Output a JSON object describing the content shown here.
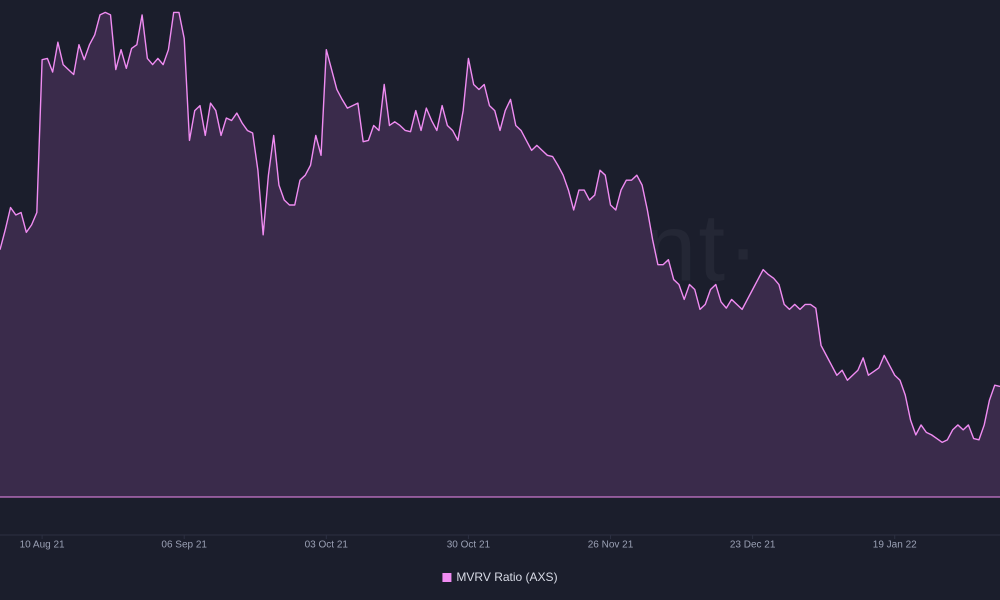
{
  "chart_data": {
    "type": "area",
    "watermark": "·santiment·",
    "x": [
      "2021-08-02",
      "2021-08-03",
      "2021-08-04",
      "2021-08-05",
      "2021-08-06",
      "2021-08-07",
      "2021-08-08",
      "2021-08-09",
      "2021-08-10",
      "2021-08-11",
      "2021-08-12",
      "2021-08-13",
      "2021-08-14",
      "2021-08-15",
      "2021-08-16",
      "2021-08-17",
      "2021-08-18",
      "2021-08-19",
      "2021-08-20",
      "2021-08-21",
      "2021-08-22",
      "2021-08-23",
      "2021-08-24",
      "2021-08-25",
      "2021-08-26",
      "2021-08-27",
      "2021-08-28",
      "2021-08-29",
      "2021-08-30",
      "2021-08-31",
      "2021-09-01",
      "2021-09-02",
      "2021-09-03",
      "2021-09-04",
      "2021-09-05",
      "2021-09-06",
      "2021-09-07",
      "2021-09-08",
      "2021-09-09",
      "2021-09-10",
      "2021-09-11",
      "2021-09-12",
      "2021-09-13",
      "2021-09-14",
      "2021-09-15",
      "2021-09-16",
      "2021-09-17",
      "2021-09-18",
      "2021-09-19",
      "2021-09-20",
      "2021-09-21",
      "2021-09-22",
      "2021-09-23",
      "2021-09-24",
      "2021-09-25",
      "2021-09-26",
      "2021-09-27",
      "2021-09-28",
      "2021-09-29",
      "2021-09-30",
      "2021-10-01",
      "2021-10-02",
      "2021-10-03",
      "2021-10-04",
      "2021-10-05",
      "2021-10-06",
      "2021-10-07",
      "2021-10-08",
      "2021-10-09",
      "2021-10-10",
      "2021-10-11",
      "2021-10-12",
      "2021-10-13",
      "2021-10-14",
      "2021-10-15",
      "2021-10-16",
      "2021-10-17",
      "2021-10-18",
      "2021-10-19",
      "2021-10-20",
      "2021-10-21",
      "2021-10-22",
      "2021-10-23",
      "2021-10-24",
      "2021-10-25",
      "2021-10-26",
      "2021-10-27",
      "2021-10-28",
      "2021-10-29",
      "2021-10-30",
      "2021-10-31",
      "2021-11-01",
      "2021-11-02",
      "2021-11-03",
      "2021-11-04",
      "2021-11-05",
      "2021-11-06",
      "2021-11-07",
      "2021-11-08",
      "2021-11-09",
      "2021-11-10",
      "2021-11-11",
      "2021-11-12",
      "2021-11-13",
      "2021-11-14",
      "2021-11-15",
      "2021-11-16",
      "2021-11-17",
      "2021-11-18",
      "2021-11-19",
      "2021-11-20",
      "2021-11-21",
      "2021-11-22",
      "2021-11-23",
      "2021-11-24",
      "2021-11-25",
      "2021-11-26",
      "2021-11-27",
      "2021-11-28",
      "2021-11-29",
      "2021-11-30",
      "2021-12-01",
      "2021-12-02",
      "2021-12-03",
      "2021-12-04",
      "2021-12-05",
      "2021-12-06",
      "2021-12-07",
      "2021-12-08",
      "2021-12-09",
      "2021-12-10",
      "2021-12-11",
      "2021-12-12",
      "2021-12-13",
      "2021-12-14",
      "2021-12-15",
      "2021-12-16",
      "2021-12-17",
      "2021-12-18",
      "2021-12-19",
      "2021-12-20",
      "2021-12-21",
      "2021-12-22",
      "2021-12-23",
      "2021-12-24",
      "2021-12-25",
      "2021-12-26",
      "2021-12-27",
      "2021-12-28",
      "2021-12-29",
      "2021-12-30",
      "2021-12-31",
      "2022-01-01",
      "2022-01-02",
      "2022-01-03",
      "2022-01-04",
      "2022-01-05",
      "2022-01-06",
      "2022-01-07",
      "2022-01-08",
      "2022-01-09",
      "2022-01-10",
      "2022-01-11",
      "2022-01-12",
      "2022-01-13",
      "2022-01-14",
      "2022-01-15",
      "2022-01-16",
      "2022-01-17",
      "2022-01-18",
      "2022-01-19",
      "2022-01-20",
      "2022-01-21",
      "2022-01-22",
      "2022-01-23",
      "2022-01-24",
      "2022-01-25",
      "2022-01-26",
      "2022-01-27",
      "2022-01-28",
      "2022-01-29",
      "2022-01-30",
      "2022-01-31",
      "2022-02-01",
      "2022-02-02",
      "2022-02-03",
      "2022-02-04",
      "2022-02-05",
      "2022-02-06",
      "2022-02-07",
      "2022-02-08"
    ],
    "series": [
      {
        "name": "MVRV Ratio (AXS)",
        "color": "#f08cf2",
        "fill": "#3a2b4b",
        "values": [
          2.99,
          3.15,
          3.33,
          3.27,
          3.29,
          3.13,
          3.19,
          3.29,
          4.52,
          4.53,
          4.42,
          4.66,
          4.48,
          4.44,
          4.4,
          4.64,
          4.52,
          4.64,
          4.72,
          4.88,
          4.9,
          4.88,
          4.44,
          4.6,
          4.45,
          4.61,
          4.64,
          4.88,
          4.53,
          4.48,
          4.53,
          4.48,
          4.6,
          4.9,
          4.9,
          4.69,
          3.87,
          4.11,
          4.15,
          3.91,
          4.17,
          4.11,
          3.91,
          4.05,
          4.03,
          4.09,
          4.01,
          3.95,
          3.93,
          3.63,
          3.11,
          3.59,
          3.91,
          3.51,
          3.39,
          3.35,
          3.35,
          3.55,
          3.59,
          3.67,
          3.91,
          3.75,
          4.6,
          4.44,
          4.28,
          4.2,
          4.13,
          4.15,
          4.17,
          3.86,
          3.87,
          3.99,
          3.95,
          4.32,
          3.99,
          4.02,
          3.99,
          3.95,
          3.94,
          4.11,
          3.95,
          4.13,
          4.03,
          3.95,
          4.15,
          3.99,
          3.95,
          3.87,
          4.11,
          4.53,
          4.32,
          4.28,
          4.32,
          4.15,
          4.11,
          3.95,
          4.11,
          4.2,
          3.99,
          3.95,
          3.87,
          3.79,
          3.83,
          3.79,
          3.75,
          3.74,
          3.67,
          3.59,
          3.47,
          3.31,
          3.47,
          3.47,
          3.39,
          3.43,
          3.63,
          3.59,
          3.35,
          3.31,
          3.47,
          3.55,
          3.55,
          3.59,
          3.51,
          3.31,
          3.07,
          2.87,
          2.87,
          2.91,
          2.75,
          2.71,
          2.59,
          2.71,
          2.67,
          2.51,
          2.55,
          2.67,
          2.71,
          2.57,
          2.52,
          2.59,
          2.55,
          2.51,
          2.59,
          2.67,
          2.75,
          2.83,
          2.79,
          2.76,
          2.71,
          2.55,
          2.51,
          2.55,
          2.51,
          2.55,
          2.55,
          2.52,
          2.22,
          2.14,
          2.06,
          1.98,
          2.02,
          1.94,
          1.98,
          2.02,
          2.12,
          1.98,
          2.01,
          2.04,
          2.14,
          2.06,
          1.98,
          1.94,
          1.82,
          1.62,
          1.5,
          1.58,
          1.52,
          1.5,
          1.47,
          1.44,
          1.46,
          1.54,
          1.58,
          1.54,
          1.58,
          1.47,
          1.46,
          1.58,
          1.78,
          1.9,
          1.89
        ]
      }
    ],
    "xlim": [
      "2021-08-02",
      "2022-02-08"
    ],
    "xticks": [
      {
        "value": "2021-08-10",
        "label": "10 Aug 21"
      },
      {
        "value": "2021-09-06",
        "label": "06 Sep 21"
      },
      {
        "value": "2021-10-03",
        "label": "03 Oct 21"
      },
      {
        "value": "2021-10-30",
        "label": "30 Oct 21"
      },
      {
        "value": "2021-11-26",
        "label": "26 Nov 21"
      },
      {
        "value": "2021-12-23",
        "label": "23 Dec 21"
      },
      {
        "value": "2022-01-19",
        "label": "19 Jan 22"
      }
    ],
    "ylim": [
      1,
      5
    ],
    "legend": "bottom"
  }
}
